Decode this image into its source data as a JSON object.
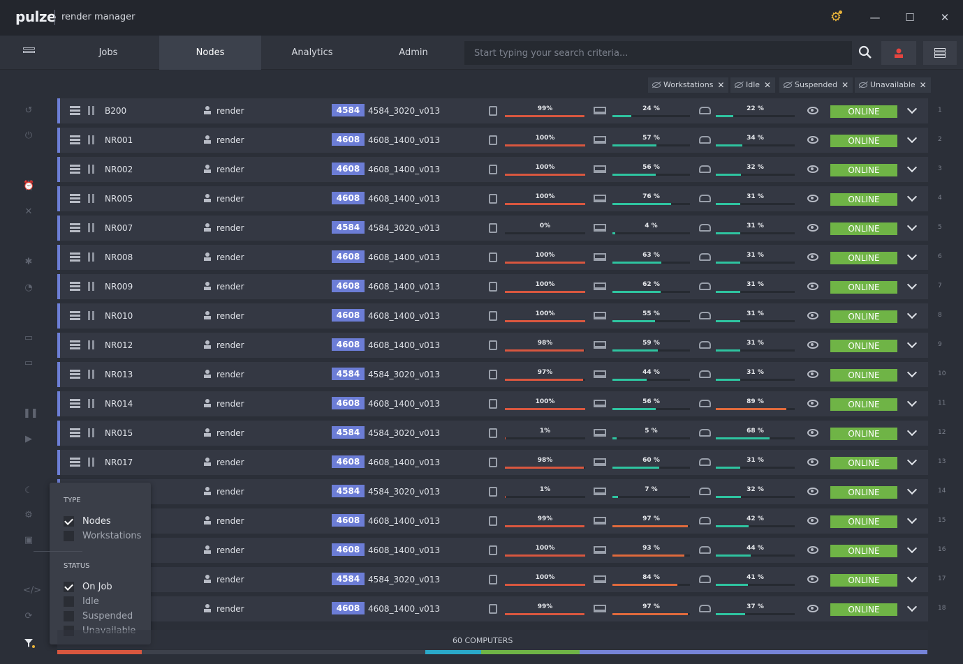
{
  "app": {
    "logo": "pulze",
    "title": "render manager"
  },
  "window": {
    "minimize": "—",
    "maximize": "☐",
    "close": "✕",
    "settings_icon": "gear-icon"
  },
  "nav": {
    "tabs": [
      {
        "label": "Jobs",
        "active": false
      },
      {
        "label": "Nodes",
        "active": true
      },
      {
        "label": "Analytics",
        "active": false
      },
      {
        "label": "Admin",
        "active": false
      }
    ],
    "search_placeholder": "Start typing your search criteria..."
  },
  "filters": {
    "chips": [
      "Workstations",
      "Idle",
      "Suspended",
      "Unavailable"
    ]
  },
  "nodes": [
    {
      "name": "B200",
      "user": "render",
      "job_id": "4584",
      "job_name": "4584_3020_v013",
      "cpu": 99,
      "cpu_label": "99%",
      "ram": 24,
      "ram_label": "24 %",
      "disk": 22,
      "disk_label": "22 %",
      "status": "ONLINE",
      "index": "1"
    },
    {
      "name": "NR001",
      "user": "render",
      "job_id": "4608",
      "job_name": "4608_1400_v013",
      "cpu": 100,
      "cpu_label": "100%",
      "ram": 57,
      "ram_label": "57 %",
      "disk": 34,
      "disk_label": "34 %",
      "status": "ONLINE",
      "index": "2"
    },
    {
      "name": "NR002",
      "user": "render",
      "job_id": "4608",
      "job_name": "4608_1400_v013",
      "cpu": 100,
      "cpu_label": "100%",
      "ram": 56,
      "ram_label": "56 %",
      "disk": 32,
      "disk_label": "32 %",
      "status": "ONLINE",
      "index": "3"
    },
    {
      "name": "NR005",
      "user": "render",
      "job_id": "4608",
      "job_name": "4608_1400_v013",
      "cpu": 100,
      "cpu_label": "100%",
      "ram": 76,
      "ram_label": "76 %",
      "disk": 31,
      "disk_label": "31 %",
      "status": "ONLINE",
      "index": "4"
    },
    {
      "name": "NR007",
      "user": "render",
      "job_id": "4584",
      "job_name": "4584_3020_v013",
      "cpu": 0,
      "cpu_label": "0%",
      "ram": 4,
      "ram_label": "4 %",
      "disk": 31,
      "disk_label": "31 %",
      "status": "ONLINE",
      "index": "5"
    },
    {
      "name": "NR008",
      "user": "render",
      "job_id": "4608",
      "job_name": "4608_1400_v013",
      "cpu": 100,
      "cpu_label": "100%",
      "ram": 63,
      "ram_label": "63 %",
      "disk": 31,
      "disk_label": "31 %",
      "status": "ONLINE",
      "index": "6"
    },
    {
      "name": "NR009",
      "user": "render",
      "job_id": "4608",
      "job_name": "4608_1400_v013",
      "cpu": 100,
      "cpu_label": "100%",
      "ram": 62,
      "ram_label": "62 %",
      "disk": 31,
      "disk_label": "31 %",
      "status": "ONLINE",
      "index": "7"
    },
    {
      "name": "NR010",
      "user": "render",
      "job_id": "4608",
      "job_name": "4608_1400_v013",
      "cpu": 100,
      "cpu_label": "100%",
      "ram": 55,
      "ram_label": "55 %",
      "disk": 31,
      "disk_label": "31 %",
      "status": "ONLINE",
      "index": "8"
    },
    {
      "name": "NR012",
      "user": "render",
      "job_id": "4608",
      "job_name": "4608_1400_v013",
      "cpu": 98,
      "cpu_label": "98%",
      "ram": 59,
      "ram_label": "59 %",
      "disk": 31,
      "disk_label": "31 %",
      "status": "ONLINE",
      "index": "9"
    },
    {
      "name": "NR013",
      "user": "render",
      "job_id": "4584",
      "job_name": "4584_3020_v013",
      "cpu": 97,
      "cpu_label": "97%",
      "ram": 44,
      "ram_label": "44 %",
      "disk": 31,
      "disk_label": "31 %",
      "status": "ONLINE",
      "index": "10"
    },
    {
      "name": "NR014",
      "user": "render",
      "job_id": "4608",
      "job_name": "4608_1400_v013",
      "cpu": 100,
      "cpu_label": "100%",
      "ram": 56,
      "ram_label": "56 %",
      "disk": 89,
      "disk_label": "89 %",
      "status": "ONLINE",
      "index": "11"
    },
    {
      "name": "NR015",
      "user": "render",
      "job_id": "4584",
      "job_name": "4584_3020_v013",
      "cpu": 1,
      "cpu_label": "1%",
      "ram": 5,
      "ram_label": "5 %",
      "disk": 68,
      "disk_label": "68 %",
      "status": "ONLINE",
      "index": "12"
    },
    {
      "name": "NR017",
      "user": "render",
      "job_id": "4608",
      "job_name": "4608_1400_v013",
      "cpu": 98,
      "cpu_label": "98%",
      "ram": 60,
      "ram_label": "60 %",
      "disk": 31,
      "disk_label": "31 %",
      "status": "ONLINE",
      "index": "13"
    },
    {
      "name": "",
      "user": "render",
      "job_id": "4584",
      "job_name": "4584_3020_v013",
      "cpu": 1,
      "cpu_label": "1%",
      "ram": 7,
      "ram_label": "7 %",
      "disk": 32,
      "disk_label": "32 %",
      "status": "ONLINE",
      "index": "14"
    },
    {
      "name": "",
      "user": "render",
      "job_id": "4608",
      "job_name": "4608_1400_v013",
      "cpu": 99,
      "cpu_label": "99%",
      "ram": 97,
      "ram_label": "97 %",
      "disk": 42,
      "disk_label": "42 %",
      "status": "ONLINE",
      "index": "15"
    },
    {
      "name": "",
      "user": "render",
      "job_id": "4608",
      "job_name": "4608_1400_v013",
      "cpu": 100,
      "cpu_label": "100%",
      "ram": 93,
      "ram_label": "93 %",
      "disk": 44,
      "disk_label": "44 %",
      "status": "ONLINE",
      "index": "16"
    },
    {
      "name": "",
      "user": "render",
      "job_id": "4584",
      "job_name": "4584_3020_v013",
      "cpu": 100,
      "cpu_label": "100%",
      "ram": 84,
      "ram_label": "84 %",
      "disk": 41,
      "disk_label": "41 %",
      "status": "ONLINE",
      "index": "17"
    },
    {
      "name": "",
      "user": "render",
      "job_id": "4608",
      "job_name": "4608_1400_v013",
      "cpu": 99,
      "cpu_label": "99%",
      "ram": 97,
      "ram_label": "97 %",
      "disk": 37,
      "disk_label": "37 %",
      "status": "ONLINE",
      "index": "18"
    }
  ],
  "popup": {
    "type_heading": "TYPE",
    "type_options": [
      {
        "label": "Nodes",
        "checked": true
      },
      {
        "label": "Workstations",
        "checked": false
      }
    ],
    "status_heading": "STATUS",
    "status_options": [
      {
        "label": "On Job",
        "checked": true
      },
      {
        "label": "Idle",
        "checked": false
      },
      {
        "label": "Suspended",
        "checked": false
      },
      {
        "label": "Unavailable",
        "checked": false
      }
    ]
  },
  "footer": {
    "count": "60 COMPUTERS",
    "summary_segments": [
      {
        "fraction": 0.0971,
        "color": "#d9573f"
      },
      {
        "fraction": 0.3255,
        "color": "#3d414b"
      },
      {
        "fraction": 0.0642,
        "color": "#2aa9c9"
      },
      {
        "fraction": 0.1132,
        "color": "#6fb446"
      },
      {
        "fraction": 0.4,
        "color": "#7684d8"
      }
    ]
  },
  "colors": {
    "accent": "#6c7dd6",
    "online": "#6fb446",
    "cpu_bar": "#d9573f",
    "ram_bar": "#2ec4a0",
    "ram_high": "#e06a3c",
    "disk_bar": "#2ec4a0",
    "disk_high": "#e06a3c"
  }
}
